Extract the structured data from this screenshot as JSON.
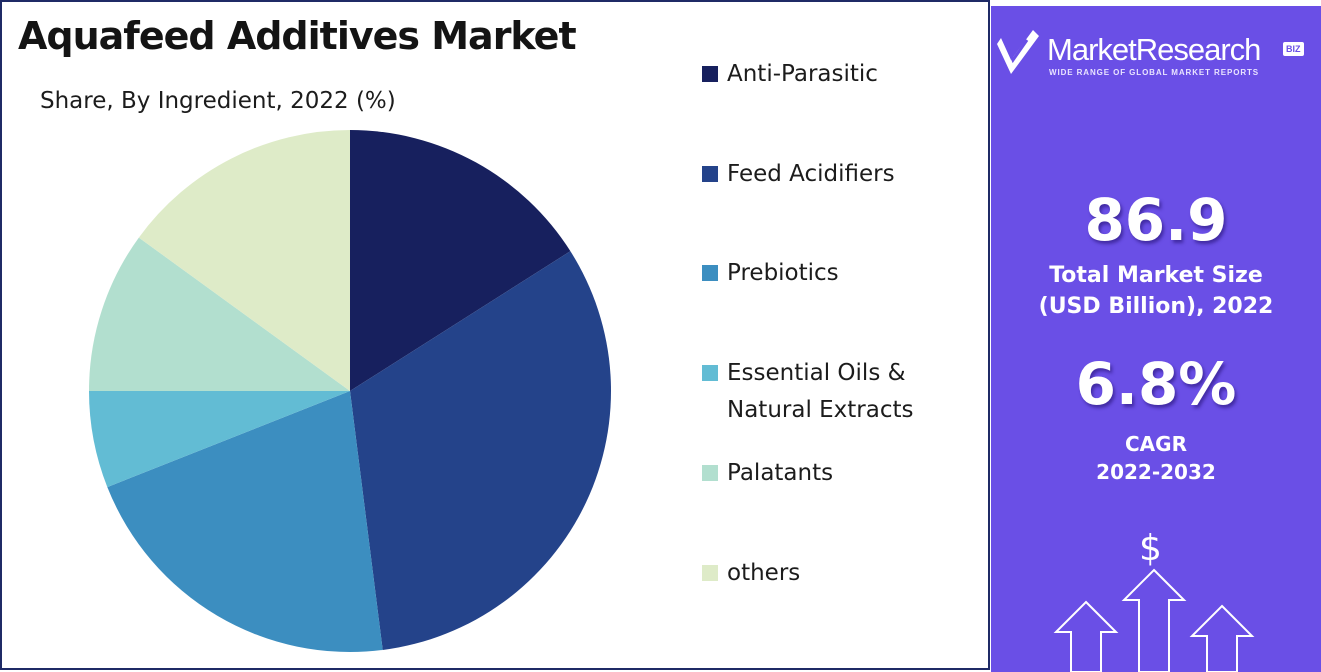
{
  "title": "Aquafeed Additives Market",
  "subtitle": "Share, By  Ingredient, 2022 (%)",
  "chart_data": {
    "type": "pie",
    "categories": [
      "Anti-Parasitic",
      "Feed Acidifiers",
      "Prebiotics",
      "Essential Oils & Natural Extracts",
      "Palatants",
      "others"
    ],
    "values": [
      16,
      32,
      21,
      6,
      10,
      15
    ],
    "colors": [
      "#17205e",
      "#24438a",
      "#3c8ec0",
      "#62bcd4",
      "#b2dfcf",
      "#deebc8"
    ],
    "legend_labels": [
      [
        "Anti-Parasitic"
      ],
      [
        "Feed Acidifiers"
      ],
      [
        "Prebiotics"
      ],
      [
        "Essential Oils &",
        "Natural Extracts"
      ],
      [
        "Palatants"
      ],
      [
        "others"
      ]
    ],
    "legend_position": "right"
  },
  "side_panel": {
    "brand_name": "MarketResearch",
    "brand_badge": "BIZ",
    "brand_tagline": "WIDE RANGE OF GLOBAL MARKET REPORTS",
    "market_size_value": "86.9",
    "market_size_label_1": "Total Market Size",
    "market_size_label_2": "(USD Billion), 2022",
    "cagr_value": "6.8%",
    "cagr_label_1": "CAGR",
    "cagr_label_2": "2022-2032",
    "dollar_symbol": "$",
    "background_color": "#6a4fe6"
  }
}
